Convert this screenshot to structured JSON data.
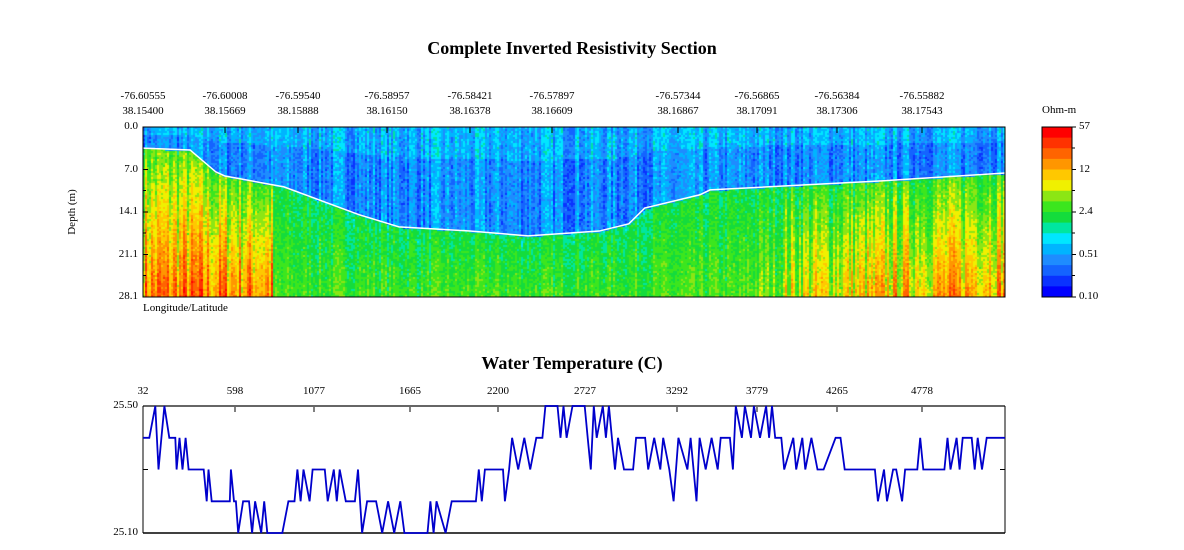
{
  "chart_data": [
    {
      "type": "heatmap",
      "title": "Complete Inverted Resistivity Section",
      "xlabel": "Longitude/Latitude",
      "ylabel": "Depth (m)",
      "x_ticks": [
        {
          "lon": "-76.60555",
          "lat": "38.15400"
        },
        {
          "lon": "-76.60008",
          "lat": "38.15669"
        },
        {
          "lon": "-76.59540",
          "lat": "38.15888"
        },
        {
          "lon": "-76.58957",
          "lat": "38.16150"
        },
        {
          "lon": "-76.58421",
          "lat": "38.16378"
        },
        {
          "lon": "-76.57897",
          "lat": "38.16609"
        },
        {
          "lon": "-76.57344",
          "lat": "38.16867"
        },
        {
          "lon": "-76.56865",
          "lat": "38.17091"
        },
        {
          "lon": "-76.56384",
          "lat": "38.17306"
        },
        {
          "lon": "-76.55882",
          "lat": "38.17543"
        }
      ],
      "y_ticks": [
        "0.0",
        "7.0",
        "14.1",
        "21.1",
        "28.1"
      ],
      "ylim": [
        0.0,
        28.1
      ],
      "y_inverted": true,
      "colorbar": {
        "label": "Ohm-m",
        "ticks": [
          "57",
          "12",
          "2.4",
          "0.51",
          "0.10"
        ],
        "range": [
          0.1,
          57
        ],
        "scale": "log",
        "colors": [
          "#0000ff",
          "#0a32ff",
          "#1464ff",
          "#1e8cff",
          "#00b4ff",
          "#00e6ff",
          "#00e6a0",
          "#14dc3c",
          "#3ce61e",
          "#8ce614",
          "#f0f000",
          "#ffc800",
          "#ff9600",
          "#ff6400",
          "#ff3200",
          "#ff0000"
        ]
      },
      "water_bottom_line": {
        "color": "#ffffff",
        "points": [
          [
            -76.60555,
            3.5
          ],
          [
            -76.60241,
            3.8
          ],
          [
            -76.6007,
            7.4
          ],
          [
            -76.60008,
            8.1
          ],
          [
            -76.5963,
            9.9
          ],
          [
            -76.5914,
            14.5
          ],
          [
            -76.5888,
            16.5
          ],
          [
            -76.58421,
            17.2
          ],
          [
            -76.5805,
            18.0
          ],
          [
            -76.5769,
            17.2
          ],
          [
            -76.5756,
            16.0
          ],
          [
            -76.5749,
            13.4
          ],
          [
            -76.57211,
            11.2
          ],
          [
            -76.5715,
            10.4
          ],
          [
            -76.56606,
            9.6
          ],
          [
            -76.5612,
            8.9
          ],
          [
            -76.5539,
            7.6
          ]
        ]
      }
    },
    {
      "type": "line",
      "title": "Water Temperature (C)",
      "x_ticks": [
        "32",
        "598",
        "1077",
        "1665",
        "2200",
        "2727",
        "3292",
        "3779",
        "4265",
        "4778"
      ],
      "y_ticks": [
        "25.50",
        "25.10"
      ],
      "xlim": [
        32,
        5268
      ],
      "ylim": [
        25.1,
        25.5
      ],
      "line_color": "#0000cc",
      "points": [
        [
          32,
          25.4
        ],
        [
          70,
          25.4
        ],
        [
          107,
          25.5
        ],
        [
          126,
          25.3
        ],
        [
          144,
          25.4
        ],
        [
          162,
          25.5
        ],
        [
          192,
          25.4
        ],
        [
          228,
          25.4
        ],
        [
          236,
          25.3
        ],
        [
          254,
          25.4
        ],
        [
          272,
          25.3
        ],
        [
          291,
          25.4
        ],
        [
          309,
          25.3
        ],
        [
          401,
          25.3
        ],
        [
          419,
          25.2
        ],
        [
          430,
          25.3
        ],
        [
          449,
          25.2
        ],
        [
          559,
          25.2
        ],
        [
          566,
          25.3
        ],
        [
          585,
          25.2
        ],
        [
          596,
          25.2
        ],
        [
          610,
          25.1
        ],
        [
          640,
          25.2
        ],
        [
          676,
          25.2
        ],
        [
          695,
          25.1
        ],
        [
          713,
          25.2
        ],
        [
          750,
          25.1
        ],
        [
          768,
          25.2
        ],
        [
          787,
          25.1
        ],
        [
          878,
          25.1
        ],
        [
          915,
          25.2
        ],
        [
          952,
          25.2
        ],
        [
          970,
          25.3
        ],
        [
          989,
          25.2
        ],
        [
          1007,
          25.3
        ],
        [
          1044,
          25.2
        ],
        [
          1062,
          25.3
        ],
        [
          1136,
          25.3
        ],
        [
          1154,
          25.2
        ],
        [
          1191,
          25.3
        ],
        [
          1209,
          25.2
        ],
        [
          1227,
          25.3
        ],
        [
          1264,
          25.2
        ],
        [
          1319,
          25.2
        ],
        [
          1338,
          25.3
        ],
        [
          1363,
          25.1
        ],
        [
          1393,
          25.2
        ],
        [
          1448,
          25.2
        ],
        [
          1485,
          25.1
        ],
        [
          1521,
          25.2
        ],
        [
          1558,
          25.1
        ],
        [
          1595,
          25.2
        ],
        [
          1620,
          25.1
        ],
        [
          1760,
          25.1
        ],
        [
          1778,
          25.2
        ],
        [
          1797,
          25.1
        ],
        [
          1815,
          25.2
        ],
        [
          1870,
          25.1
        ],
        [
          1907,
          25.2
        ],
        [
          2054,
          25.2
        ],
        [
          2072,
          25.3
        ],
        [
          2090,
          25.2
        ],
        [
          2109,
          25.3
        ],
        [
          2219,
          25.3
        ],
        [
          2230,
          25.2
        ],
        [
          2256,
          25.3
        ],
        [
          2274,
          25.4
        ],
        [
          2311,
          25.3
        ],
        [
          2348,
          25.4
        ],
        [
          2384,
          25.3
        ],
        [
          2421,
          25.4
        ],
        [
          2458,
          25.4
        ],
        [
          2476,
          25.5
        ],
        [
          2550,
          25.5
        ],
        [
          2568,
          25.4
        ],
        [
          2586,
          25.5
        ],
        [
          2605,
          25.4
        ],
        [
          2641,
          25.5
        ],
        [
          2715,
          25.5
        ],
        [
          2733,
          25.4
        ],
        [
          2752,
          25.3
        ],
        [
          2770,
          25.5
        ],
        [
          2788,
          25.4
        ],
        [
          2825,
          25.5
        ],
        [
          2844,
          25.4
        ],
        [
          2862,
          25.5
        ],
        [
          2880,
          25.4
        ],
        [
          2899,
          25.3
        ],
        [
          2917,
          25.4
        ],
        [
          2954,
          25.3
        ],
        [
          3009,
          25.3
        ],
        [
          3027,
          25.4
        ],
        [
          3082,
          25.4
        ],
        [
          3101,
          25.3
        ],
        [
          3137,
          25.4
        ],
        [
          3174,
          25.3
        ],
        [
          3192,
          25.4
        ],
        [
          3229,
          25.3
        ],
        [
          3255,
          25.2
        ],
        [
          3284,
          25.4
        ],
        [
          3339,
          25.3
        ],
        [
          3358,
          25.4
        ],
        [
          3394,
          25.2
        ],
        [
          3413,
          25.4
        ],
        [
          3450,
          25.3
        ],
        [
          3486,
          25.4
        ],
        [
          3523,
          25.3
        ],
        [
          3541,
          25.4
        ],
        [
          3597,
          25.4
        ],
        [
          3615,
          25.3
        ],
        [
          3633,
          25.5
        ],
        [
          3670,
          25.4
        ],
        [
          3688,
          25.5
        ],
        [
          3725,
          25.4
        ],
        [
          3743,
          25.5
        ],
        [
          3780,
          25.4
        ],
        [
          3817,
          25.5
        ],
        [
          3835,
          25.4
        ],
        [
          3853,
          25.5
        ],
        [
          3872,
          25.4
        ],
        [
          3909,
          25.4
        ],
        [
          3927,
          25.3
        ],
        [
          3982,
          25.4
        ],
        [
          4000,
          25.3
        ],
        [
          4037,
          25.4
        ],
        [
          4055,
          25.3
        ],
        [
          4092,
          25.4
        ],
        [
          4129,
          25.3
        ],
        [
          4166,
          25.3
        ],
        [
          4239,
          25.4
        ],
        [
          4269,
          25.4
        ],
        [
          4294,
          25.3
        ],
        [
          4478,
          25.3
        ],
        [
          4496,
          25.2
        ],
        [
          4533,
          25.3
        ],
        [
          4551,
          25.2
        ],
        [
          4588,
          25.3
        ],
        [
          4607,
          25.3
        ],
        [
          4643,
          25.2
        ],
        [
          4661,
          25.3
        ],
        [
          4735,
          25.3
        ],
        [
          4753,
          25.4
        ],
        [
          4772,
          25.3
        ],
        [
          4900,
          25.3
        ],
        [
          4919,
          25.4
        ],
        [
          4937,
          25.3
        ],
        [
          4974,
          25.4
        ],
        [
          4992,
          25.3
        ],
        [
          5011,
          25.4
        ],
        [
          5066,
          25.4
        ],
        [
          5084,
          25.3
        ],
        [
          5102,
          25.4
        ],
        [
          5128,
          25.3
        ],
        [
          5157,
          25.4
        ],
        [
          5268,
          25.4
        ]
      ]
    }
  ]
}
